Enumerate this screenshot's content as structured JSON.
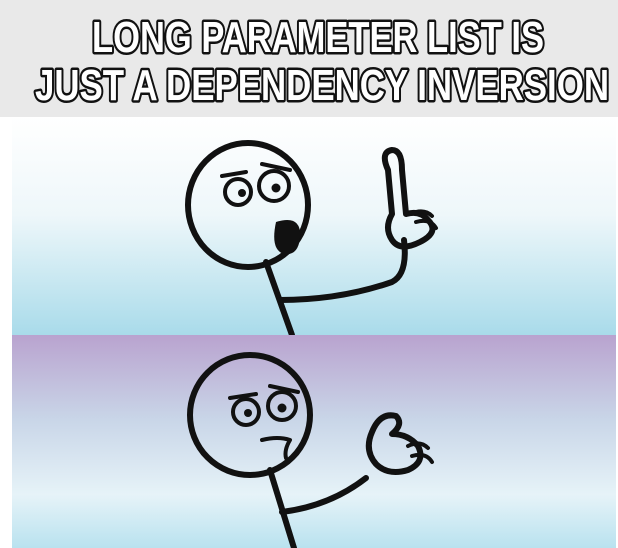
{
  "caption": {
    "line1": "LONG PARAMETER LIST IS",
    "line2": "JUST A DEPENDENCY INVERSION"
  }
}
